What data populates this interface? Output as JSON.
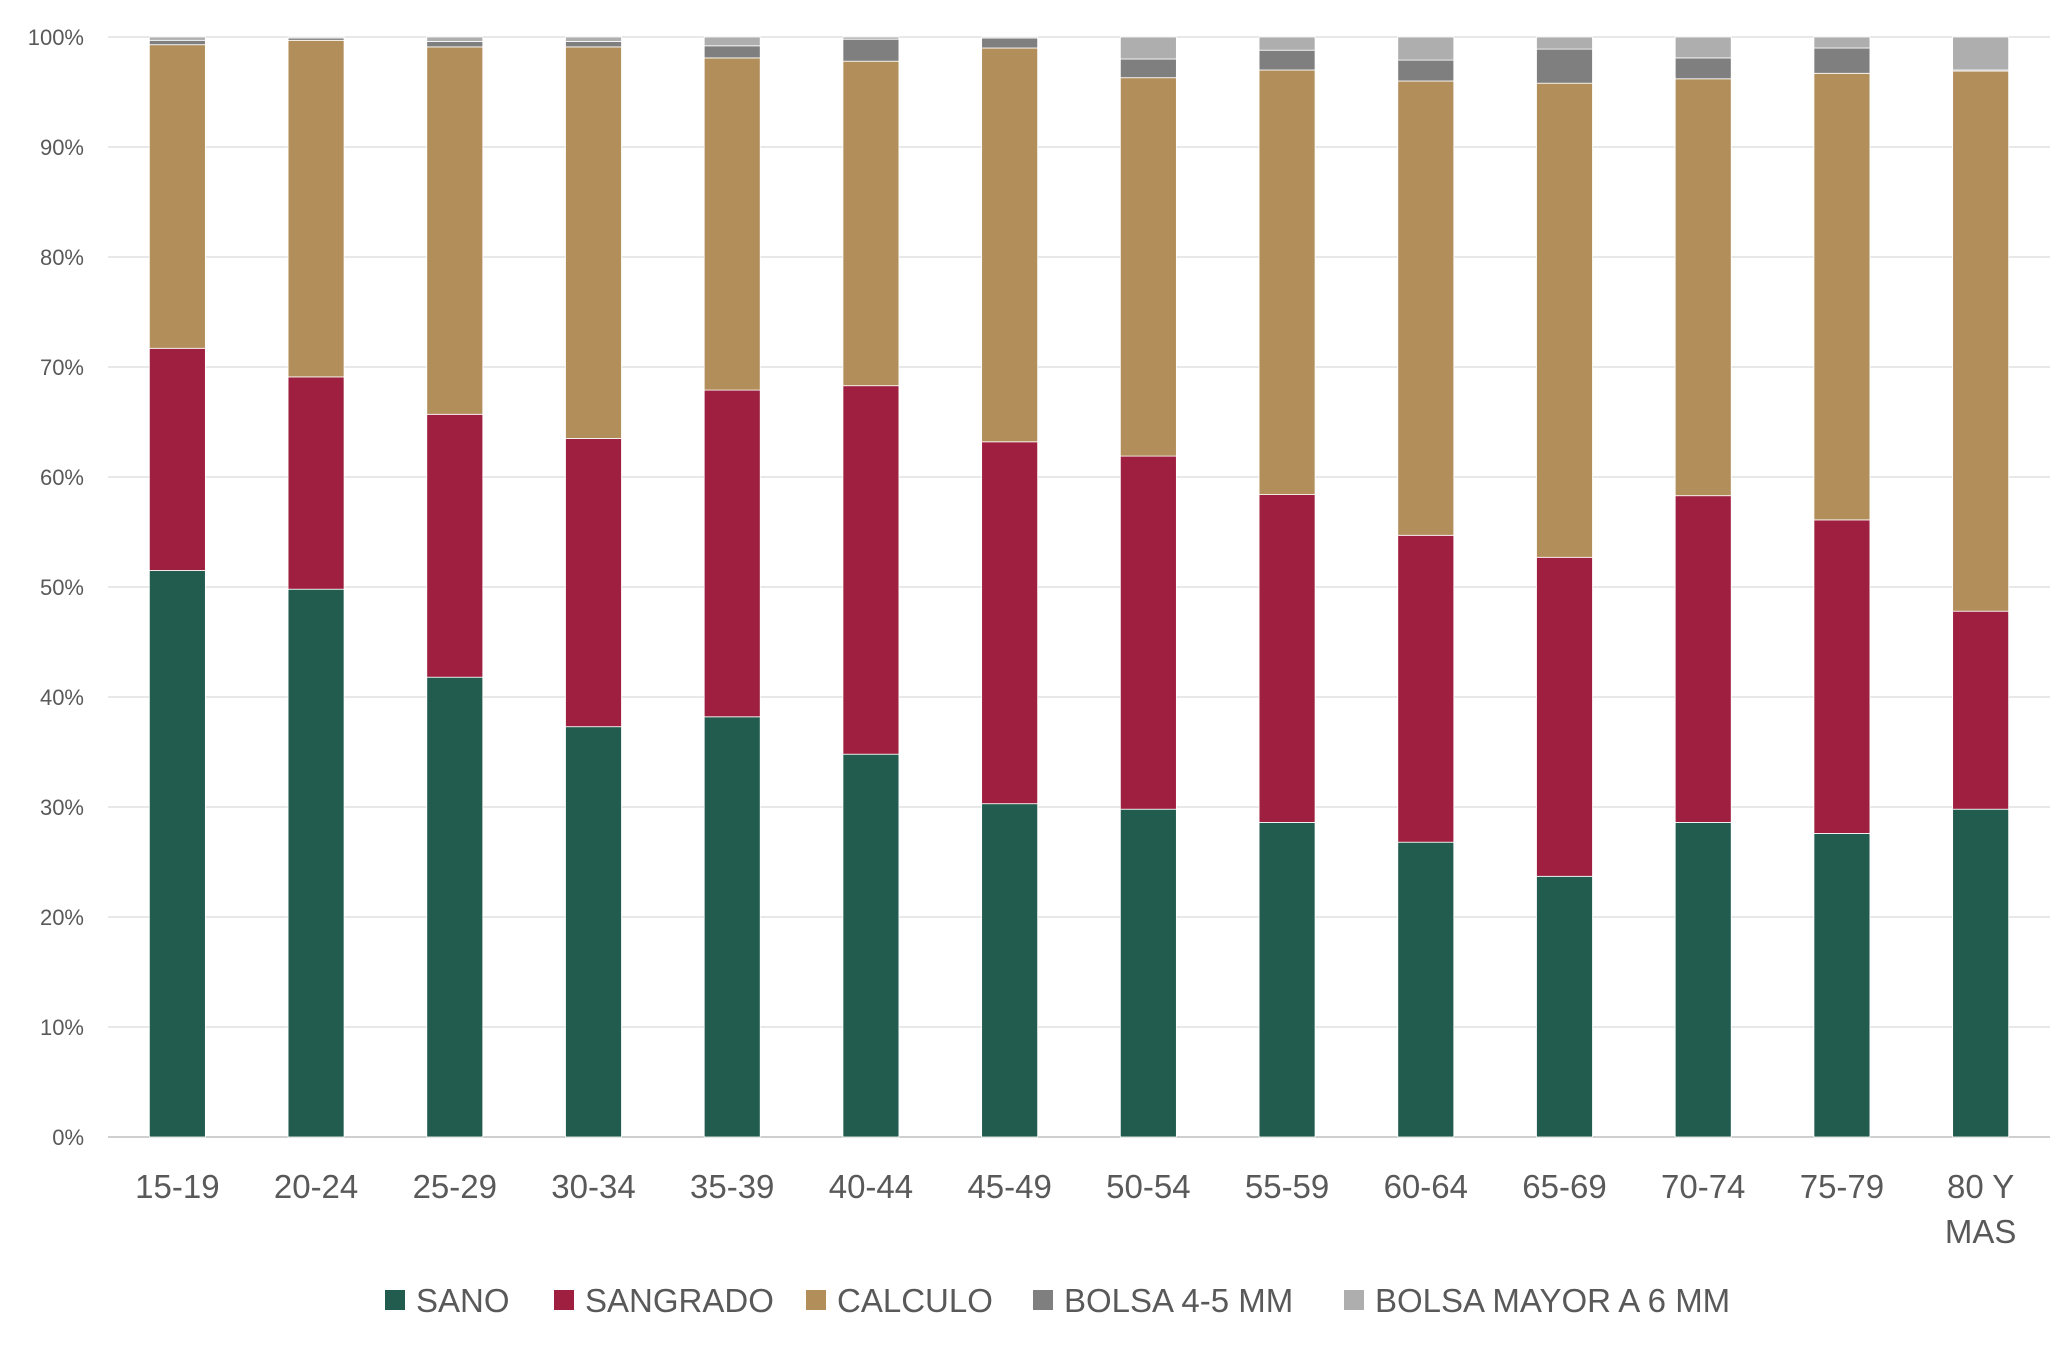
{
  "chart_data": {
    "type": "bar",
    "stacked": true,
    "percent_stacked": true,
    "categories": [
      "15-19",
      "20-24",
      "25-29",
      "30-34",
      "35-39",
      "40-44",
      "45-49",
      "50-54",
      "55-59",
      "60-64",
      "65-69",
      "70-74",
      "75-79",
      [
        "80 Y",
        "MAS"
      ]
    ],
    "series": [
      {
        "name": "SANO",
        "color": "#225c4f",
        "values": [
          51.5,
          49.8,
          41.8,
          37.3,
          38.2,
          34.8,
          30.3,
          29.8,
          28.6,
          26.8,
          23.7,
          28.6,
          27.6,
          29.8
        ]
      },
      {
        "name": "SANGRADO",
        "color": "#9e1f3f",
        "values": [
          20.2,
          19.3,
          23.9,
          26.2,
          29.7,
          33.5,
          32.9,
          32.1,
          29.8,
          27.9,
          29.0,
          29.7,
          28.5,
          18.0
        ]
      },
      {
        "name": "CALCULO",
        "color": "#b28e5b",
        "values": [
          27.6,
          30.6,
          33.4,
          35.6,
          30.2,
          29.5,
          35.8,
          34.4,
          38.6,
          41.3,
          43.1,
          37.9,
          40.6,
          49.1
        ]
      },
      {
        "name": "BOLSA 4-5 MM",
        "color": "#7f7f7f",
        "values": [
          0.4,
          0.2,
          0.5,
          0.5,
          1.1,
          2.0,
          0.9,
          1.7,
          1.8,
          1.9,
          3.1,
          1.9,
          2.3,
          0.1
        ]
      },
      {
        "name": "BOLSA MAYOR A 6 MM",
        "color": "#aeaeae",
        "values": [
          0.3,
          0.1,
          0.4,
          0.4,
          0.8,
          0.2,
          0.1,
          2.0,
          1.2,
          2.1,
          1.1,
          1.9,
          1.0,
          3.0
        ]
      }
    ],
    "y_ticks": [
      "0%",
      "10%",
      "20%",
      "30%",
      "40%",
      "50%",
      "60%",
      "70%",
      "80%",
      "90%",
      "100%"
    ],
    "ylim": [
      0,
      100
    ],
    "grid": true,
    "legend_position": "bottom",
    "title": "",
    "xlabel": "",
    "ylabel": ""
  }
}
